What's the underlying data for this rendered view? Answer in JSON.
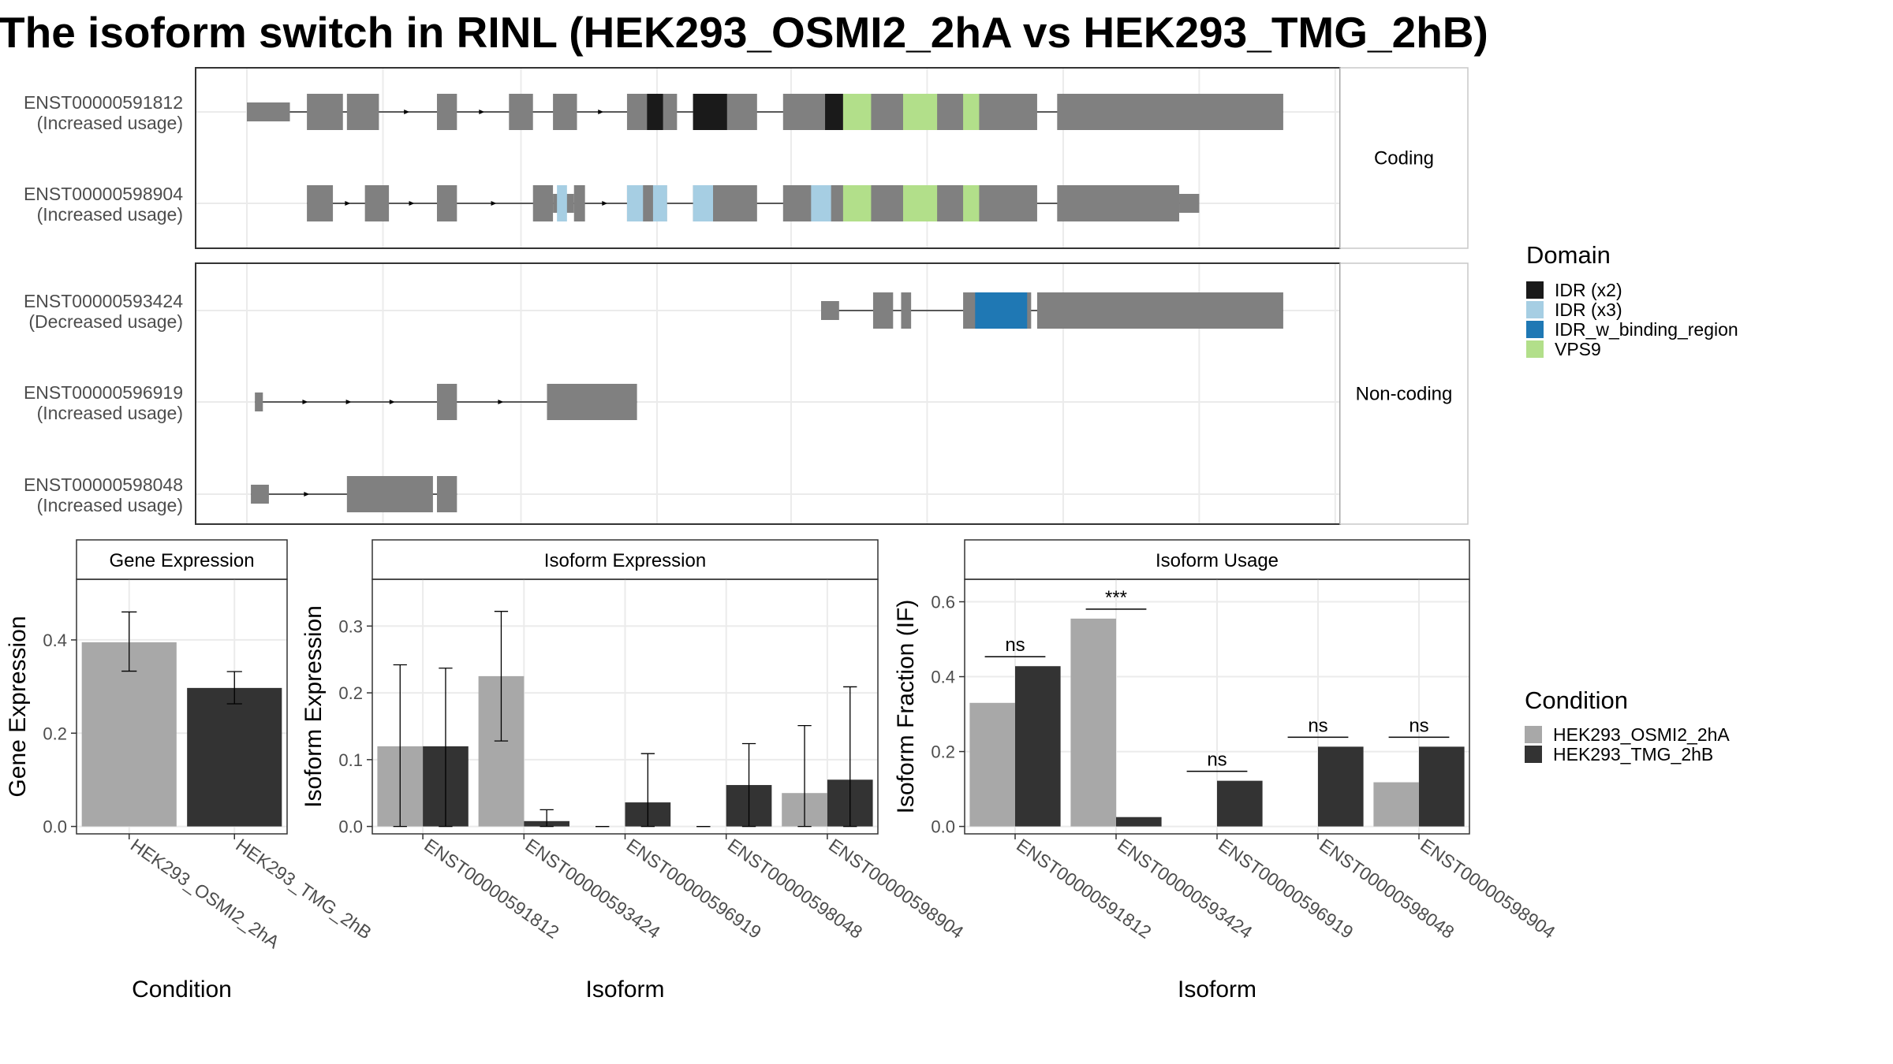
{
  "title": "The isoform switch in RINL (HEK293_OSMI2_2hA vs HEK293_TMG_2hB)",
  "colors": {
    "exon": "#808080",
    "IDR (x2)": "#1a1a1a",
    "IDR (x3)": "#a6cee3",
    "IDR_w_binding_region": "#1f78b4",
    "VPS9": "#b2df8a",
    "cond_a": "#a8a8a8",
    "cond_b": "#333333"
  },
  "legend_domain": {
    "title": "Domain",
    "items": [
      "IDR (x2)",
      "IDR (x3)",
      "IDR_w_binding_region",
      "VPS9"
    ]
  },
  "legend_condition": {
    "title": "Condition",
    "items": [
      "HEK293_OSMI2_2hA",
      "HEK293_TMG_2hB"
    ]
  },
  "structure": {
    "panels": [
      {
        "strip": "Coding",
        "transcripts": [
          {
            "id": "ENST00000591812",
            "usage": "(Increased usage)",
            "thin": [
              [
                0,
                2.15
              ]
            ],
            "thick": [
              [
                3,
                4.8
              ],
              [
                5,
                6.6
              ],
              [
                9.5,
                10.5
              ],
              [
                13.1,
                14.3
              ],
              [
                15.3,
                16.5
              ],
              [
                19,
                21.5
              ],
              [
                22.3,
                25.5
              ],
              [
                26.8,
                39.5
              ],
              [
                40.5,
                51.8
              ]
            ],
            "intron_arrows": true,
            "domains": [
              {
                "name": "IDR (x2)",
                "start": 20,
                "end": 20.8
              },
              {
                "name": "IDR (x2)",
                "start": 22.3,
                "end": 24
              },
              {
                "name": "IDR (x2)",
                "start": 28.9,
                "end": 29.8
              },
              {
                "name": "VPS9",
                "start": 29.8,
                "end": 31.2
              },
              {
                "name": "VPS9",
                "start": 32.8,
                "end": 34.5
              },
              {
                "name": "VPS9",
                "start": 35.8,
                "end": 36.6
              }
            ]
          },
          {
            "id": "ENST00000598904",
            "usage": "(Increased usage)",
            "thin": [
              [
                15.3,
                15.75
              ],
              [
                15.8,
                16.35
              ],
              [
                46.6,
                47.6
              ]
            ],
            "thick": [
              [
                3,
                4.3
              ],
              [
                5.9,
                7.1
              ],
              [
                9.5,
                10.5
              ],
              [
                14.3,
                15.3
              ],
              [
                15.75,
                15.8
              ],
              [
                16.35,
                16.9
              ],
              [
                19,
                21
              ],
              [
                22.3,
                25.5
              ],
              [
                26.8,
                39.5
              ],
              [
                40.5,
                46.6
              ]
            ],
            "intron_arrows": true,
            "domains": [
              {
                "name": "IDR (x3)",
                "start": 15.5,
                "end": 16
              },
              {
                "name": "IDR (x3)",
                "start": 19,
                "end": 19.8
              },
              {
                "name": "IDR (x3)",
                "start": 20.3,
                "end": 21
              },
              {
                "name": "IDR (x3)",
                "start": 22.3,
                "end": 23.3
              },
              {
                "name": "IDR (x3)",
                "start": 28.2,
                "end": 29.2
              },
              {
                "name": "VPS9",
                "start": 29.8,
                "end": 31.2
              },
              {
                "name": "VPS9",
                "start": 32.8,
                "end": 34.5
              },
              {
                "name": "VPS9",
                "start": 35.8,
                "end": 36.6
              }
            ]
          }
        ]
      },
      {
        "strip": "Non-coding",
        "transcripts": [
          {
            "id": "ENST00000593424",
            "usage": "(Decreased usage)",
            "thin": [
              [
                28.7,
                29.6
              ]
            ],
            "thick": [
              [
                31.3,
                32.3
              ],
              [
                32.7,
                33.2
              ],
              [
                35.8,
                39.2
              ],
              [
                39.5,
                51.8
              ]
            ],
            "intron_arrows": false,
            "domains": [
              {
                "name": "IDR_w_binding_region",
                "start": 36.4,
                "end": 39
              }
            ]
          },
          {
            "id": "ENST00000596919",
            "usage": "(Increased usage)",
            "thin": [
              [
                0.4,
                0.8
              ]
            ],
            "thick": [
              [
                9.5,
                10.5
              ],
              [
                15,
                19.5
              ]
            ],
            "intron_arrows": true,
            "domains": []
          },
          {
            "id": "ENST00000598048",
            "usage": "(Increased usage)",
            "thin": [
              [
                0.2,
                1.1
              ]
            ],
            "thick": [
              [
                5,
                9.3
              ],
              [
                9.5,
                10.5
              ]
            ],
            "intron_arrows": true,
            "domains": []
          }
        ]
      }
    ]
  },
  "chart_data": [
    {
      "type": "bar",
      "title": "Gene Expression",
      "xlabel": "Condition",
      "ylabel": "Gene Expression",
      "ylim": [
        0,
        0.53
      ],
      "yticks": [
        "0.0",
        "0.2",
        "0.4"
      ],
      "categories": [
        "HEK293_OSMI2_2hA",
        "HEK293_TMG_2hB"
      ],
      "series": [
        {
          "name": "HEK293_OSMI2_2hA",
          "values": [
            0.395,
            null
          ],
          "err_low": [
            0.333,
            null
          ],
          "err_high": [
            0.46,
            null
          ]
        },
        {
          "name": "HEK293_TMG_2hB",
          "values": [
            null,
            0.297
          ],
          "err_low": [
            null,
            0.263
          ],
          "err_high": [
            null,
            0.332
          ]
        }
      ]
    },
    {
      "type": "bar",
      "title": "Isoform Expression",
      "xlabel": "Isoform",
      "ylabel": "Isoform Expression",
      "ylim": [
        0,
        0.37
      ],
      "yticks": [
        "0.0",
        "0.1",
        "0.2",
        "0.3"
      ],
      "categories": [
        "ENST00000591812",
        "ENST00000593424",
        "ENST00000596919",
        "ENST00000598048",
        "ENST00000598904"
      ],
      "series": [
        {
          "name": "HEK293_OSMI2_2hA",
          "values": [
            0.12,
            0.225,
            0,
            0,
            0.05
          ],
          "err_low": [
            0,
            0.128,
            0,
            0,
            0
          ],
          "err_high": [
            0.242,
            0.322,
            0,
            0,
            0.151
          ]
        },
        {
          "name": "HEK293_TMG_2hB",
          "values": [
            0.12,
            0.008,
            0.036,
            0.062,
            0.07
          ],
          "err_low": [
            0,
            0,
            0,
            0,
            0
          ],
          "err_high": [
            0.237,
            0.025,
            0.109,
            0.124,
            0.209
          ]
        }
      ]
    },
    {
      "type": "bar",
      "title": "Isoform Usage",
      "xlabel": "Isoform",
      "ylabel": "Isoform Fraction (IF)",
      "ylim": [
        0,
        0.66
      ],
      "yticks": [
        "0.0",
        "0.2",
        "0.4",
        "0.6"
      ],
      "categories": [
        "ENST00000591812",
        "ENST00000593424",
        "ENST00000596919",
        "ENST00000598048",
        "ENST00000598904"
      ],
      "series": [
        {
          "name": "HEK293_OSMI2_2hA",
          "values": [
            0.33,
            0.555,
            0,
            0,
            0.118
          ]
        },
        {
          "name": "HEK293_TMG_2hB",
          "values": [
            0.428,
            0.025,
            0.122,
            0.213,
            0.213
          ]
        }
      ],
      "significance": [
        "ns",
        "***",
        "ns",
        "ns",
        "ns"
      ]
    }
  ]
}
